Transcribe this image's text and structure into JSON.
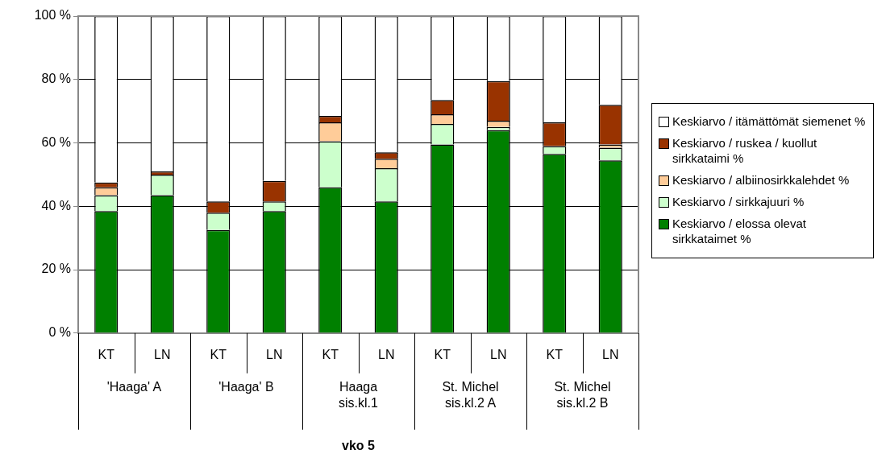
{
  "chart_data": {
    "type": "bar",
    "stacked": true,
    "categories": [
      "KT",
      "LN",
      "KT",
      "LN",
      "KT",
      "LN",
      "KT",
      "LN",
      "KT",
      "LN"
    ],
    "annotations": [
      "'Haaga' A",
      "'Haaga' B",
      "Haaga\nsis.kl.1",
      "St. Michel\nsis.kl.2 A",
      "St. Michel\nsis.kl.2 B",
      "vko 5"
    ],
    "series": [
      {
        "name": "Keskiarvo / elossa olevat sirkkataimet %",
        "color": "#008000",
        "values": [
          38.5,
          43.5,
          32.5,
          38.5,
          46,
          41.5,
          59.5,
          64,
          56.5,
          54.5
        ]
      },
      {
        "name": "Keskiarvo / sirkkajuuri %",
        "color": "#ccffcc",
        "values": [
          5,
          6.5,
          5.5,
          3,
          14.5,
          10.5,
          6.5,
          1,
          2.5,
          4
        ]
      },
      {
        "name": "Keskiarvo / albiinosirkkalehdet   %",
        "color": "#ffcc99",
        "values": [
          2.5,
          0,
          0,
          0,
          6,
          3,
          3,
          2,
          0,
          1
        ]
      },
      {
        "name": "Keskiarvo / ruskea / kuollut sirkkataimi %",
        "color": "#993300",
        "values": [
          1.5,
          1,
          3.5,
          6.5,
          2,
          2,
          4.5,
          12.5,
          7.5,
          12.5
        ]
      },
      {
        "name": "Keskiarvo / itämättömät siemenet %",
        "color": "#ffffff",
        "values": [
          52.5,
          49,
          58.5,
          52,
          31.5,
          43,
          26.5,
          20.5,
          33.5,
          28
        ]
      }
    ],
    "ylim": [
      0,
      100
    ],
    "yticks": [
      {
        "value": 0,
        "label": "0 %"
      },
      {
        "value": 20,
        "label": "20 %"
      },
      {
        "value": 40,
        "label": "40 %"
      },
      {
        "value": 60,
        "label": "60 %"
      },
      {
        "value": 80,
        "label": "80 %"
      },
      {
        "value": 100,
        "label": "100 %"
      }
    ],
    "grid": "y",
    "legend": "right"
  }
}
